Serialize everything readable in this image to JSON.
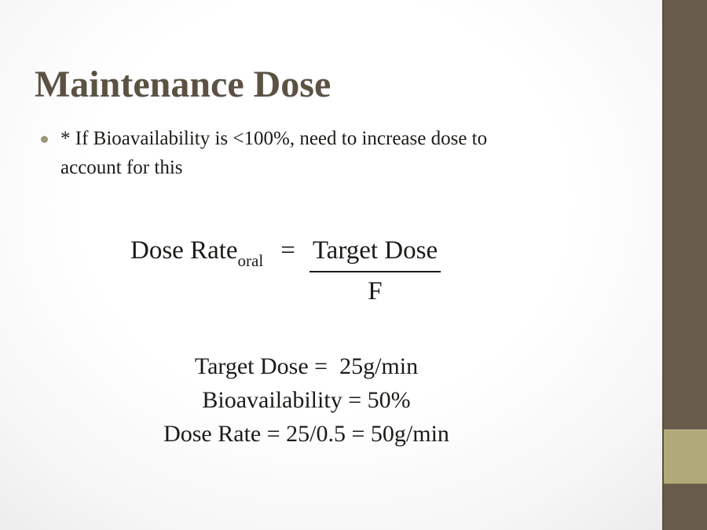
{
  "slide": {
    "title": "Maintenance Dose",
    "bullet": {
      "line1": "* If Bioavailability is <100%, need to increase dose to",
      "line2": "account for this"
    },
    "formula": {
      "lhs": "Dose Rate",
      "lhs_subscript": "oral",
      "equals": "=",
      "numerator": "Target Dose",
      "denominator": "F"
    },
    "examples": {
      "line1": "Target Dose =  25g/min",
      "line2": "Bioavailability = 50%",
      "line3": "Dose Rate = 25/0.5 = 50g/min"
    },
    "colors": {
      "sidebar_dark": "#675d4a",
      "sidebar_accent": "#b0aa78",
      "title_text": "#5b5244",
      "body_text": "#1d1b18",
      "bullet_dot": "#9c9878"
    }
  }
}
